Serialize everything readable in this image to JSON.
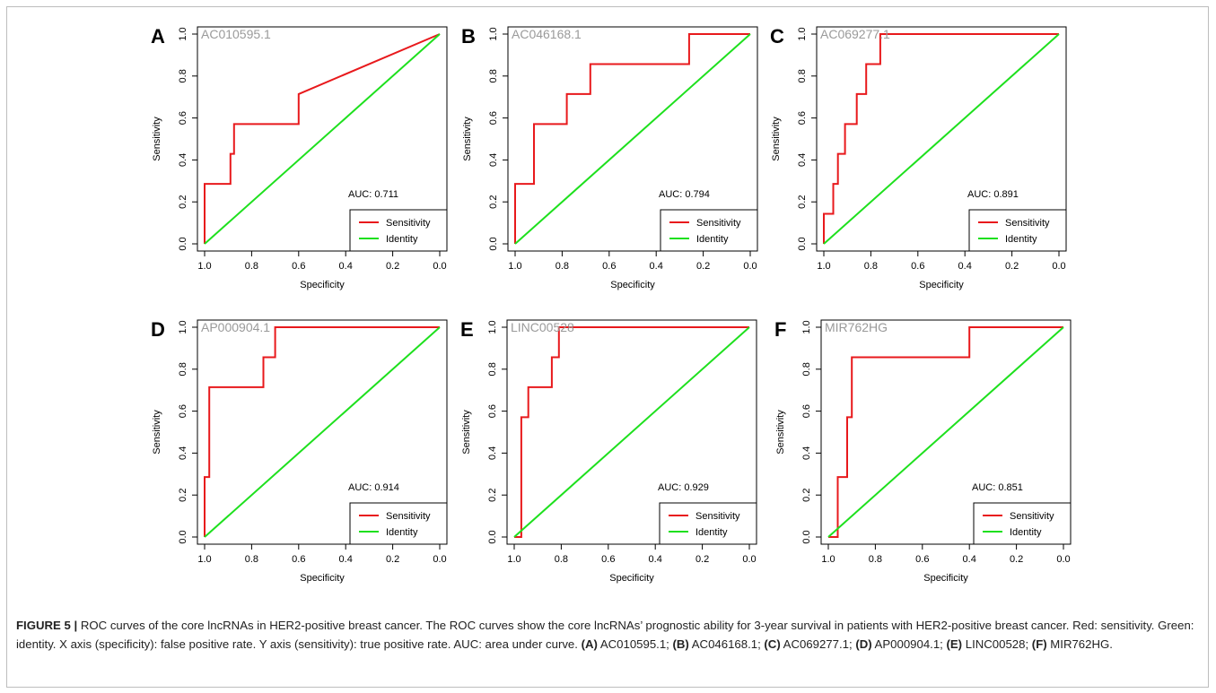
{
  "caption": {
    "figure_label": "FIGURE 5 |",
    "title_text": " ROC curves of the core lncRNAs in HER2-positive breast cancer. The ROC curves show the core lncRNAs’ prognostic ability for 3-year survival in patients with HER2-positive breast cancer. Red: sensitivity. Green: identity. X axis (specificity): false positive rate. Y axis (sensitivity): true positive rate. AUC: area under curve. ",
    "items": [
      {
        "tag": "(A)",
        "text": " AC010595.1; "
      },
      {
        "tag": "(B)",
        "text": " AC046168.1; "
      },
      {
        "tag": "(C)",
        "text": " AC069277.1; "
      },
      {
        "tag": "(D)",
        "text": " AP000904.1; "
      },
      {
        "tag": "(E)",
        "text": " LINC00528; "
      },
      {
        "tag": "(F)",
        "text": " MIR762HG."
      }
    ]
  },
  "colors": {
    "sensitivity": "#e8191c",
    "identity": "#1ee01e",
    "gene_label": "#9a9a9a"
  },
  "chart_data": [
    {
      "type": "line",
      "panel": "A",
      "gene": "AC010595.1",
      "auc_text": "AUC: 0.711",
      "xlabel": "Specificity",
      "ylabel": "Sensitivity",
      "xlim": [
        1.0,
        0.0
      ],
      "ylim": [
        0.0,
        1.0
      ],
      "xticks": [
        "1.0",
        "0.8",
        "0.6",
        "0.4",
        "0.2",
        "0.0"
      ],
      "yticks": [
        "0.0",
        "0.2",
        "0.4",
        "0.6",
        "0.8",
        "1.0"
      ],
      "legend": [
        "Sensitivity",
        "Identity"
      ],
      "legend_position": "bottom-right",
      "series": [
        {
          "name": "Sensitivity",
          "x": [
            1.0,
            1.0,
            0.89,
            0.89,
            0.875,
            0.875,
            0.6,
            0.6,
            0.0
          ],
          "y": [
            0.0,
            0.286,
            0.286,
            0.429,
            0.429,
            0.571,
            0.571,
            0.714,
            1.0
          ]
        },
        {
          "name": "Identity",
          "x": [
            1.0,
            0.0
          ],
          "y": [
            0.0,
            1.0
          ]
        }
      ]
    },
    {
      "type": "line",
      "panel": "B",
      "gene": "AC046168.1",
      "auc_text": "AUC: 0.794",
      "xlabel": "Specificity",
      "ylabel": "Sensitivity",
      "xlim": [
        1.0,
        0.0
      ],
      "ylim": [
        0.0,
        1.0
      ],
      "xticks": [
        "1.0",
        "0.8",
        "0.6",
        "0.4",
        "0.2",
        "0.0"
      ],
      "yticks": [
        "0.0",
        "0.2",
        "0.4",
        "0.6",
        "0.8",
        "1.0"
      ],
      "legend": [
        "Sensitivity",
        "Identity"
      ],
      "legend_position": "bottom-right",
      "series": [
        {
          "name": "Sensitivity",
          "x": [
            1.0,
            1.0,
            0.92,
            0.92,
            0.78,
            0.78,
            0.68,
            0.68,
            0.26,
            0.26,
            0.0
          ],
          "y": [
            0.0,
            0.286,
            0.286,
            0.571,
            0.571,
            0.714,
            0.714,
            0.857,
            0.857,
            1.0,
            1.0
          ]
        },
        {
          "name": "Identity",
          "x": [
            1.0,
            0.0
          ],
          "y": [
            0.0,
            1.0
          ]
        }
      ]
    },
    {
      "type": "line",
      "panel": "C",
      "gene": "AC069277.1",
      "auc_text": "AUC: 0.891",
      "xlabel": "Specificity",
      "ylabel": "Sensitivity",
      "xlim": [
        1.0,
        0.0
      ],
      "ylim": [
        0.0,
        1.0
      ],
      "xticks": [
        "1.0",
        "0.8",
        "0.6",
        "0.4",
        "0.2",
        "0.0"
      ],
      "yticks": [
        "0.0",
        "0.2",
        "0.4",
        "0.6",
        "0.8",
        "1.0"
      ],
      "legend": [
        "Sensitivity",
        "Identity"
      ],
      "legend_position": "bottom-right",
      "series": [
        {
          "name": "Sensitivity",
          "x": [
            1.0,
            1.0,
            0.96,
            0.96,
            0.94,
            0.94,
            0.91,
            0.91,
            0.86,
            0.86,
            0.82,
            0.82,
            0.76,
            0.76,
            0.0
          ],
          "y": [
            0.0,
            0.143,
            0.143,
            0.286,
            0.286,
            0.429,
            0.429,
            0.571,
            0.571,
            0.714,
            0.714,
            0.857,
            0.857,
            1.0,
            1.0
          ]
        },
        {
          "name": "Identity",
          "x": [
            1.0,
            0.0
          ],
          "y": [
            0.0,
            1.0
          ]
        }
      ]
    },
    {
      "type": "line",
      "panel": "D",
      "gene": "AP000904.1",
      "auc_text": "AUC: 0.914",
      "xlabel": "Specificity",
      "ylabel": "Sensitivity",
      "xlim": [
        1.0,
        0.0
      ],
      "ylim": [
        0.0,
        1.0
      ],
      "xticks": [
        "1.0",
        "0.8",
        "0.6",
        "0.4",
        "0.2",
        "0.0"
      ],
      "yticks": [
        "0.0",
        "0.2",
        "0.4",
        "0.6",
        "0.8",
        "1.0"
      ],
      "legend": [
        "Sensitivity",
        "Identity"
      ],
      "legend_position": "bottom-right",
      "series": [
        {
          "name": "Sensitivity",
          "x": [
            1.0,
            1.0,
            0.98,
            0.98,
            0.95,
            0.95,
            0.75,
            0.75,
            0.7,
            0.7,
            0.0
          ],
          "y": [
            0.0,
            0.286,
            0.286,
            0.714,
            0.714,
            0.714,
            0.714,
            0.857,
            0.857,
            1.0,
            1.0
          ]
        },
        {
          "name": "Identity",
          "x": [
            1.0,
            0.0
          ],
          "y": [
            0.0,
            1.0
          ]
        }
      ]
    },
    {
      "type": "line",
      "panel": "E",
      "gene": "LINC00528",
      "auc_text": "AUC: 0.929",
      "xlabel": "Specificity",
      "ylabel": "Sensitivity",
      "xlim": [
        1.0,
        0.0
      ],
      "ylim": [
        0.0,
        1.0
      ],
      "xticks": [
        "1.0",
        "0.8",
        "0.6",
        "0.4",
        "0.2",
        "0.0"
      ],
      "yticks": [
        "0.0",
        "0.2",
        "0.4",
        "0.6",
        "0.8",
        "1.0"
      ],
      "legend": [
        "Sensitivity",
        "Identity"
      ],
      "legend_position": "bottom-right",
      "series": [
        {
          "name": "Sensitivity",
          "x": [
            1.0,
            0.97,
            0.97,
            0.94,
            0.94,
            0.84,
            0.84,
            0.81,
            0.81,
            0.0
          ],
          "y": [
            0.0,
            0.0,
            0.571,
            0.571,
            0.714,
            0.714,
            0.857,
            0.857,
            1.0,
            1.0
          ]
        },
        {
          "name": "Identity",
          "x": [
            1.0,
            0.0
          ],
          "y": [
            0.0,
            1.0
          ]
        }
      ]
    },
    {
      "type": "line",
      "panel": "F",
      "gene": "MIR762HG",
      "auc_text": "AUC: 0.851",
      "xlabel": "Specificity",
      "ylabel": "Sensitivity",
      "xlim": [
        1.0,
        0.0
      ],
      "ylim": [
        0.0,
        1.0
      ],
      "xticks": [
        "1.0",
        "0.8",
        "0.6",
        "0.4",
        "0.2",
        "0.0"
      ],
      "yticks": [
        "0.0",
        "0.2",
        "0.4",
        "0.6",
        "0.8",
        "1.0"
      ],
      "legend": [
        "Sensitivity",
        "Identity"
      ],
      "legend_position": "bottom-right",
      "series": [
        {
          "name": "Sensitivity",
          "x": [
            1.0,
            0.96,
            0.96,
            0.92,
            0.92,
            0.9,
            0.9,
            0.4,
            0.4,
            0.0
          ],
          "y": [
            0.0,
            0.0,
            0.286,
            0.286,
            0.571,
            0.571,
            0.857,
            0.857,
            1.0,
            1.0
          ]
        },
        {
          "name": "Identity",
          "x": [
            1.0,
            0.0
          ],
          "y": [
            0.0,
            1.0
          ]
        }
      ]
    }
  ]
}
